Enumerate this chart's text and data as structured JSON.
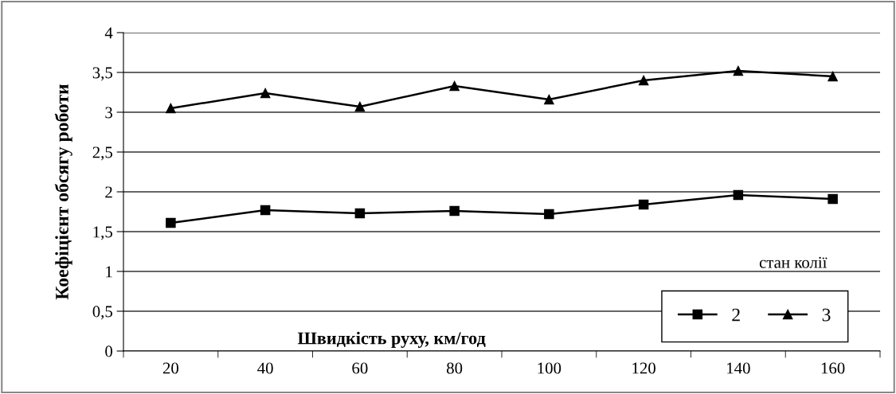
{
  "chart_data": {
    "type": "line",
    "xlabel": "Швидкість руху, км/год",
    "ylabel": "Коефіцієнт обсягу роботи",
    "legend_title": "стан колії",
    "categories": [
      "20",
      "40",
      "60",
      "80",
      "100",
      "120",
      "140",
      "160"
    ],
    "series": [
      {
        "name": "2",
        "color": "#000000",
        "marker": "square",
        "values": [
          1.61,
          1.77,
          1.73,
          1.76,
          1.72,
          1.84,
          1.96,
          1.91
        ]
      },
      {
        "name": "3",
        "color": "#000000",
        "marker": "triangle",
        "values": [
          3.05,
          3.24,
          3.07,
          3.33,
          3.16,
          3.4,
          3.52,
          3.45
        ]
      }
    ],
    "ylim": [
      0,
      4
    ],
    "yticks": [
      0,
      {
        "value": 0.5,
        "label": "0,5"
      },
      1,
      {
        "value": 1.5,
        "label": "1,5"
      },
      2,
      {
        "value": 2.5,
        "label": "2,5"
      },
      3,
      {
        "value": 3.5,
        "label": "3,5"
      },
      4
    ],
    "grid": "y",
    "legend": "bottom right",
    "line_style": "solid"
  }
}
